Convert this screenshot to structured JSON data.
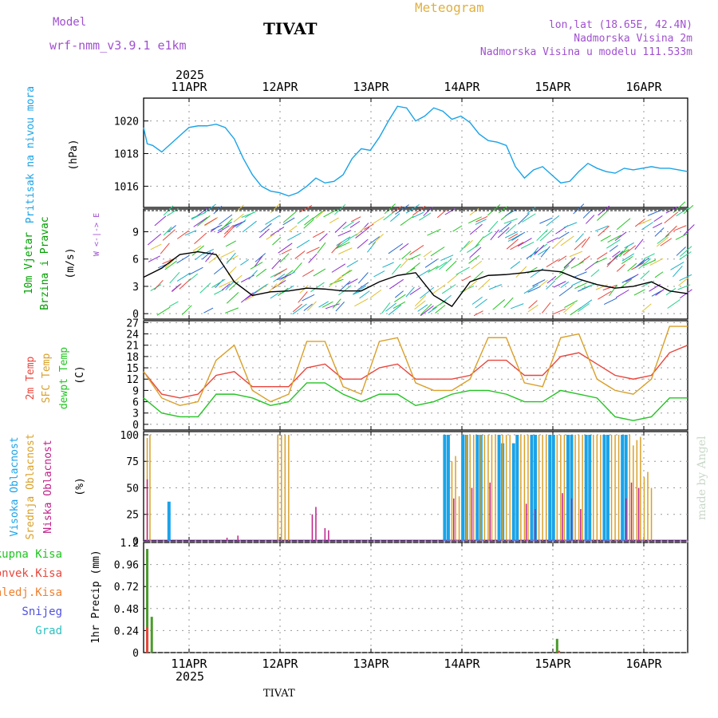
{
  "header": {
    "model_label": "Model",
    "model_name": "wrf-nmm_v3.9.1 e1km",
    "station": "TIVAT",
    "meteogram": "Meteogram",
    "lonlat": "lon,lat (18.65E, 42.4N)",
    "altitude": "Nadmorska Visina 2m",
    "model_altitude": "Nadmorska Visina u modelu 111.533m",
    "footer_station": "TIVAT",
    "credit": "made by Angel"
  },
  "colors": {
    "pressure": "#1aa3e8",
    "wind": "#00a000",
    "temp2m": "#e8463c",
    "sfc": "#d9a02a",
    "dew": "#22c422",
    "cloud_high": "#1aa3e8",
    "cloud_mid": "#d9a02a",
    "cloud_low": "#c0208a",
    "precip": "#4a9a2a"
  },
  "time_axis": {
    "year": "2025",
    "days": [
      "11APR",
      "12APR",
      "13APR",
      "14APR",
      "15APR",
      "16APR"
    ]
  },
  "panels": {
    "pressure": {
      "label": "Pritisak na nivou mora",
      "unit": "(hPa)"
    },
    "wind": {
      "label1": "10m Vjetar",
      "label2": "Brzina i Pravac",
      "unit": "(m/s)",
      "compass": "W <-|-> E"
    },
    "temp": {
      "label1": "2m Temp",
      "label2": "SFC Temp",
      "label3": "dewpt Temp",
      "unit": "(C)"
    },
    "cloud": {
      "label1": "Visoka Oblacnost",
      "label2": "Srednja Oblacnost",
      "label3": "Niska Oblacnost",
      "unit": "(%)"
    },
    "precip": {
      "unit": "1hr Precip (mm)",
      "legend": [
        "Ukupna Kisa",
        "Konvek.Kisa",
        "Zaledj.Kisa",
        "Snijeg",
        "Grad"
      ]
    }
  },
  "chart_data": [
    {
      "type": "line",
      "title": "",
      "ylabel": "Pritisak na nivou mora (hPa)",
      "yticks": [
        1016,
        1018,
        1020
      ],
      "ylim": [
        1014.7,
        1021.4
      ],
      "x": [
        0,
        0.2,
        0.5,
        1,
        1.5,
        2,
        2.5,
        3,
        3.5,
        4,
        4.5,
        5,
        5.5,
        6,
        6.5,
        7,
        7.5,
        8,
        8.5,
        9,
        9.5,
        10,
        10.5,
        11,
        11.5,
        12,
        12.5,
        13,
        13.5,
        14,
        14.5,
        15,
        15.5,
        16,
        16.5,
        17,
        17.5,
        18,
        18.5,
        19,
        19.5,
        20,
        20.5,
        21,
        21.5,
        22,
        22.5,
        23,
        23.5,
        24,
        24.5,
        25,
        25.5,
        26,
        26.5,
        27,
        27.5,
        28,
        28.5,
        29,
        29.5,
        30
      ],
      "series": [
        {
          "name": "",
          "values": [
            1019.6,
            1018.6,
            1018.5,
            1018.1,
            1018.6,
            1019.1,
            1019.6,
            1019.7,
            1019.7,
            1019.8,
            1019.6,
            1018.9,
            1017.7,
            1016.7,
            1016.0,
            1015.7,
            1015.6,
            1015.4,
            1015.6,
            1016.0,
            1016.5,
            1016.2,
            1016.3,
            1016.7,
            1017.7,
            1018.3,
            1018.2,
            1019.0,
            1020.0,
            1020.9,
            1020.8,
            1020.0,
            1020.3,
            1020.8,
            1020.6,
            1020.1,
            1020.3,
            1019.9,
            1019.2,
            1018.8,
            1018.7,
            1018.5,
            1017.2,
            1016.5,
            1017.0,
            1017.2,
            1016.7,
            1016.2,
            1016.3,
            1016.9,
            1017.4,
            1017.1,
            1016.9,
            1016.8,
            1017.1,
            1017.0,
            1017.1,
            1017.2,
            1017.1,
            1017.1,
            1017.0,
            1016.9
          ]
        }
      ]
    },
    {
      "type": "line",
      "title": "",
      "ylabel": "10m Vjetar Brzina i Pravac (m/s)",
      "yticks": [
        0,
        3,
        6,
        9
      ],
      "ylim": [
        -0.6,
        11.5
      ],
      "x": [
        0,
        1,
        2,
        3,
        4,
        5,
        6,
        7,
        8,
        9,
        10,
        11,
        12,
        13,
        14,
        15,
        16,
        17,
        18,
        19,
        20,
        21,
        22,
        23,
        24,
        25,
        26,
        27,
        28,
        29,
        30
      ],
      "series": [
        {
          "name": "",
          "values": [
            4.0,
            5.0,
            6.5,
            6.8,
            6.5,
            3.5,
            2.0,
            2.4,
            2.5,
            2.8,
            2.7,
            2.5,
            2.5,
            3.5,
            4.2,
            4.5,
            2.0,
            0.8,
            3.5,
            4.2,
            4.3,
            4.5,
            4.8,
            4.6,
            3.8,
            3.2,
            2.8,
            3.0,
            3.5,
            2.5,
            2.2
          ]
        }
      ]
    },
    {
      "type": "line",
      "title": "",
      "ylabel": "Temp (C)",
      "yticks": [
        0,
        3,
        6,
        9,
        12,
        15,
        18,
        21,
        24,
        27
      ],
      "ylim": [
        -1.5,
        27.5
      ],
      "x": [
        0,
        1,
        2,
        3,
        4,
        5,
        6,
        7,
        8,
        9,
        10,
        11,
        12,
        13,
        14,
        15,
        16,
        17,
        18,
        19,
        20,
        21,
        22,
        23,
        24,
        25,
        26,
        27,
        28,
        29,
        30
      ],
      "series": [
        {
          "name": "2m Temp",
          "values": [
            14,
            8,
            7,
            8,
            13,
            14,
            10,
            10,
            10,
            15,
            16,
            12,
            12,
            15,
            16,
            12,
            12,
            12,
            13,
            17,
            17,
            13,
            13,
            18,
            19,
            16,
            13,
            12,
            13,
            19,
            21
          ]
        },
        {
          "name": "SFC Temp",
          "values": [
            14,
            7,
            5,
            6,
            17,
            21,
            9,
            6,
            8,
            22,
            22,
            10,
            8,
            22,
            23,
            11,
            9,
            9,
            12,
            23,
            23,
            11,
            10,
            23,
            24,
            12,
            9,
            8,
            12,
            26,
            26
          ]
        },
        {
          "name": "dewpt Temp",
          "values": [
            7,
            3,
            2,
            2,
            8,
            8,
            7,
            5,
            6,
            11,
            11,
            8,
            6,
            8,
            8,
            5,
            6,
            8,
            9,
            9,
            8,
            6,
            6,
            9,
            8,
            7,
            2,
            1,
            2,
            7,
            7
          ]
        }
      ]
    },
    {
      "type": "bar",
      "title": "",
      "ylabel": "Oblacnost (%)",
      "yticks": [
        0,
        25,
        50,
        75,
        100
      ],
      "ylim": [
        0,
        103
      ],
      "series": [
        {
          "name": "Visoka Oblacnost",
          "x": [
            1.4,
            16.6,
            16.8,
            17.6,
            17.8,
            18.4,
            18.6,
            19.6,
            19.8,
            20.4,
            20.6,
            21.4,
            21.6,
            22.4,
            22.6,
            23.4,
            23.6,
            24.4,
            24.6,
            25.4,
            25.6,
            26.4,
            26.6
          ],
          "values": [
            37,
            100,
            100,
            100,
            100,
            100,
            100,
            100,
            92,
            92,
            100,
            100,
            100,
            100,
            100,
            100,
            100,
            100,
            100,
            100,
            100,
            100,
            100
          ]
        },
        {
          "name": "Srednja Oblacnost",
          "x": [
            0.2,
            0.35,
            7.4,
            7.6,
            7.8,
            8.0,
            17.0,
            17.2,
            17.4,
            17.8,
            18.0,
            18.2,
            18.6,
            18.8,
            19.0,
            19.2,
            19.4,
            19.8,
            20.0,
            20.2,
            20.8,
            21.0,
            21.2,
            21.8,
            22.0,
            22.2,
            22.8,
            23.0,
            23.2,
            23.8,
            24.0,
            24.2,
            24.8,
            25.0,
            25.2,
            25.8,
            26.0,
            26.2,
            26.8,
            27.0,
            27.2,
            27.4,
            27.6,
            27.8,
            28.0
          ],
          "values": [
            97,
            100,
            100,
            100,
            100,
            100,
            75,
            80,
            42,
            100,
            100,
            100,
            100,
            100,
            100,
            100,
            100,
            100,
            100,
            100,
            100,
            100,
            100,
            100,
            100,
            100,
            100,
            100,
            100,
            100,
            100,
            100,
            100,
            100,
            100,
            100,
            100,
            100,
            100,
            90,
            95,
            98,
            60,
            65,
            50
          ]
        },
        {
          "name": "Niska Oblacnost",
          "x": [
            0.2,
            4.6,
            5.2,
            9.3,
            9.5,
            10.0,
            10.2,
            17.1,
            18.1,
            19.1,
            21.1,
            21.6,
            23.1,
            23.6,
            24.1,
            26.6,
            26.9,
            27.3
          ],
          "values": [
            58,
            3,
            5,
            25,
            32,
            12,
            10,
            40,
            50,
            55,
            35,
            30,
            45,
            40,
            30,
            40,
            55,
            50
          ]
        }
      ]
    },
    {
      "type": "bar",
      "title": "",
      "ylabel": "1hr Precip (mm)",
      "yticks": [
        0,
        0.24,
        0.48,
        0.72,
        0.96,
        1.2
      ],
      "ylim": [
        0,
        1.2
      ],
      "series": [
        {
          "name": "Ukupna Kisa",
          "x": [
            0.2,
            0.45,
            22.8
          ],
          "values": [
            1.13,
            0.39,
            0.15
          ]
        },
        {
          "name": "Konvek.Kisa",
          "x": [
            0.2,
            22.9
          ],
          "values": [
            0.28,
            0.02
          ]
        },
        {
          "name": "Zaledj.Kisa",
          "x": [],
          "values": []
        },
        {
          "name": "Snijeg",
          "x": [],
          "values": []
        },
        {
          "name": "Grad",
          "x": [],
          "values": []
        }
      ]
    }
  ]
}
